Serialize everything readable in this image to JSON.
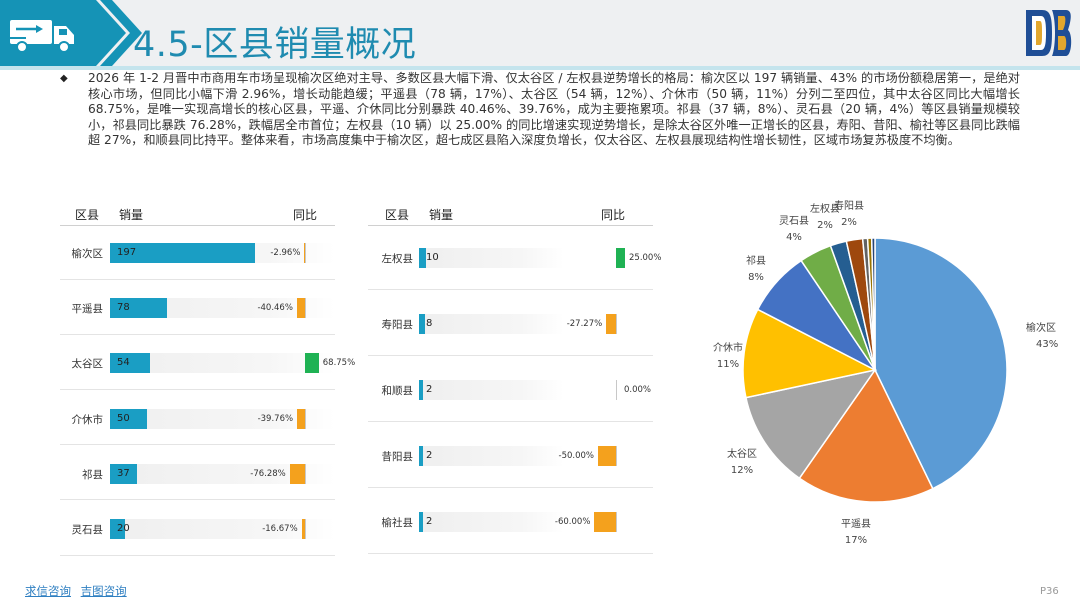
{
  "header": {
    "title": "4.5-区县销量概况"
  },
  "colors": {
    "header_teal": "#1593b6",
    "header_bg": "#eef0f2",
    "bar_fill": "#1a9ec4",
    "yoy_positive": "#1fb254",
    "yoy_negative": "#f4a11d",
    "logo_blue": "#1f4e96",
    "logo_gold": "#e2a72e"
  },
  "icons": {
    "header_left": "truck-icon",
    "header_right": "brand-logo-icon",
    "intro_bullet": "diamond-bullet-icon"
  },
  "intro": {
    "bullet": "◆",
    "text": "2026 年 1-2 月晋中市商用车市场呈现榆次区绝对主导、多数区县大幅下滑、仅太谷区 / 左权县逆势增长的格局：榆次区以 197 辆销量、43% 的市场份额稳居第一，是绝对核心市场，但同比小幅下滑 2.96%，增长动能趋缓；平遥县（78 辆，17%）、太谷区（54 辆，12%）、介休市（50 辆，11%）分列二至四位，其中太谷区同比大幅增长 68.75%，是唯一实现高增长的核心区县，平遥、介休同比分别暴跌 40.46%、39.76%，成为主要拖累项。祁县（37 辆，8%）、灵石县（20 辆，4%）等区县销量规模较小，祁县同比暴跌 76.28%，跌幅居全市首位；左权县（10 辆）以 25.00% 的同比增速实现逆势增长，是除太谷区外唯一正增长的区县，寿阳、昔阳、榆社等区县同比跌幅超 27%，和顺县同比持平。整体来看，市场高度集中于榆次区，超七成区县陷入深度负增长，仅太谷区、左权县展现结构性增长韧性，区域市场复苏极度不均衡。"
  },
  "left_table": {
    "headers": {
      "district": "区县",
      "sales": "销量",
      "yoy": "同比"
    },
    "rows": [
      {
        "district": "榆次区",
        "sales": 197,
        "sales_label": "197",
        "yoy": -2.96,
        "yoy_label": "-2.96%"
      },
      {
        "district": "平遥县",
        "sales": 78,
        "sales_label": "78",
        "yoy": -40.46,
        "yoy_label": "-40.46%"
      },
      {
        "district": "太谷区",
        "sales": 54,
        "sales_label": "54",
        "yoy": 68.75,
        "yoy_label": "68.75%"
      },
      {
        "district": "介休市",
        "sales": 50,
        "sales_label": "50",
        "yoy": -39.76,
        "yoy_label": "-39.76%"
      },
      {
        "district": "祁县",
        "sales": 37,
        "sales_label": "37",
        "yoy": -76.28,
        "yoy_label": "-76.28%"
      },
      {
        "district": "灵石县",
        "sales": 20,
        "sales_label": "20",
        "yoy": -16.67,
        "yoy_label": "-16.67%"
      }
    ]
  },
  "right_table": {
    "headers": {
      "district": "区县",
      "sales": "销量",
      "yoy": "同比"
    },
    "rows": [
      {
        "district": "左权县",
        "sales": 10,
        "sales_label": "10",
        "yoy": 25.0,
        "yoy_label": "25.00%"
      },
      {
        "district": "寿阳县",
        "sales": 8,
        "sales_label": "8",
        "yoy": -27.27,
        "yoy_label": "-27.27%"
      },
      {
        "district": "和顺县",
        "sales": 2,
        "sales_label": "2",
        "yoy": 0.0,
        "yoy_label": "0.00%"
      },
      {
        "district": "昔阳县",
        "sales": 2,
        "sales_label": "2",
        "yoy": -50.0,
        "yoy_label": "-50.00%"
      },
      {
        "district": "榆社县",
        "sales": 2,
        "sales_label": "2",
        "yoy": -60.0,
        "yoy_label": "-60.00%"
      }
    ]
  },
  "chart_data": [
    {
      "type": "bar",
      "orientation": "horizontal",
      "categories": [
        "榆次区",
        "平遥县",
        "太谷区",
        "介休市",
        "祁县",
        "灵石县"
      ],
      "series": [
        {
          "name": "销量",
          "values": [
            197,
            78,
            54,
            50,
            37,
            20
          ]
        },
        {
          "name": "同比",
          "values": [
            -2.96,
            -40.46,
            68.75,
            -39.76,
            -76.28,
            -16.67
          ],
          "unit": "%"
        }
      ],
      "grid": false
    },
    {
      "type": "bar",
      "orientation": "horizontal",
      "categories": [
        "左权县",
        "寿阳县",
        "和顺县",
        "昔阳县",
        "榆社县"
      ],
      "series": [
        {
          "name": "销量",
          "values": [
            10,
            8,
            2,
            2,
            2
          ]
        },
        {
          "name": "同比",
          "values": [
            25.0,
            -27.27,
            0.0,
            -50.0,
            -60.0
          ],
          "unit": "%"
        }
      ],
      "grid": false
    },
    {
      "type": "pie",
      "slices": [
        {
          "label": "榆次区",
          "value": 43,
          "pct_label": "43%",
          "color": "#5b9bd5"
        },
        {
          "label": "平遥县",
          "value": 17,
          "pct_label": "17%",
          "color": "#ed7d31"
        },
        {
          "label": "太谷区",
          "value": 12,
          "pct_label": "12%",
          "color": "#a5a5a5"
        },
        {
          "label": "介休市",
          "value": 11,
          "pct_label": "11%",
          "color": "#ffc000"
        },
        {
          "label": "祁县",
          "value": 8,
          "pct_label": "8%",
          "color": "#4472c4"
        },
        {
          "label": "灵石县",
          "value": 4,
          "pct_label": "4%",
          "color": "#70ad47"
        },
        {
          "label": "左权县",
          "value": 2,
          "pct_label": "2%",
          "color": "#255e91"
        },
        {
          "label": "寿阳县",
          "value": 2,
          "pct_label": "2%",
          "color": "#9e480e"
        },
        {
          "label": "",
          "value": 0.6,
          "pct_label": "",
          "color": "#636363"
        },
        {
          "label": "",
          "value": 0.5,
          "pct_label": "",
          "color": "#997300"
        },
        {
          "label": "",
          "value": 0.4,
          "pct_label": "",
          "color": "#264478"
        }
      ],
      "legend": "none"
    }
  ],
  "footer": {
    "link1": "求信咨询",
    "link2": "吉图咨询",
    "page": "P36"
  }
}
